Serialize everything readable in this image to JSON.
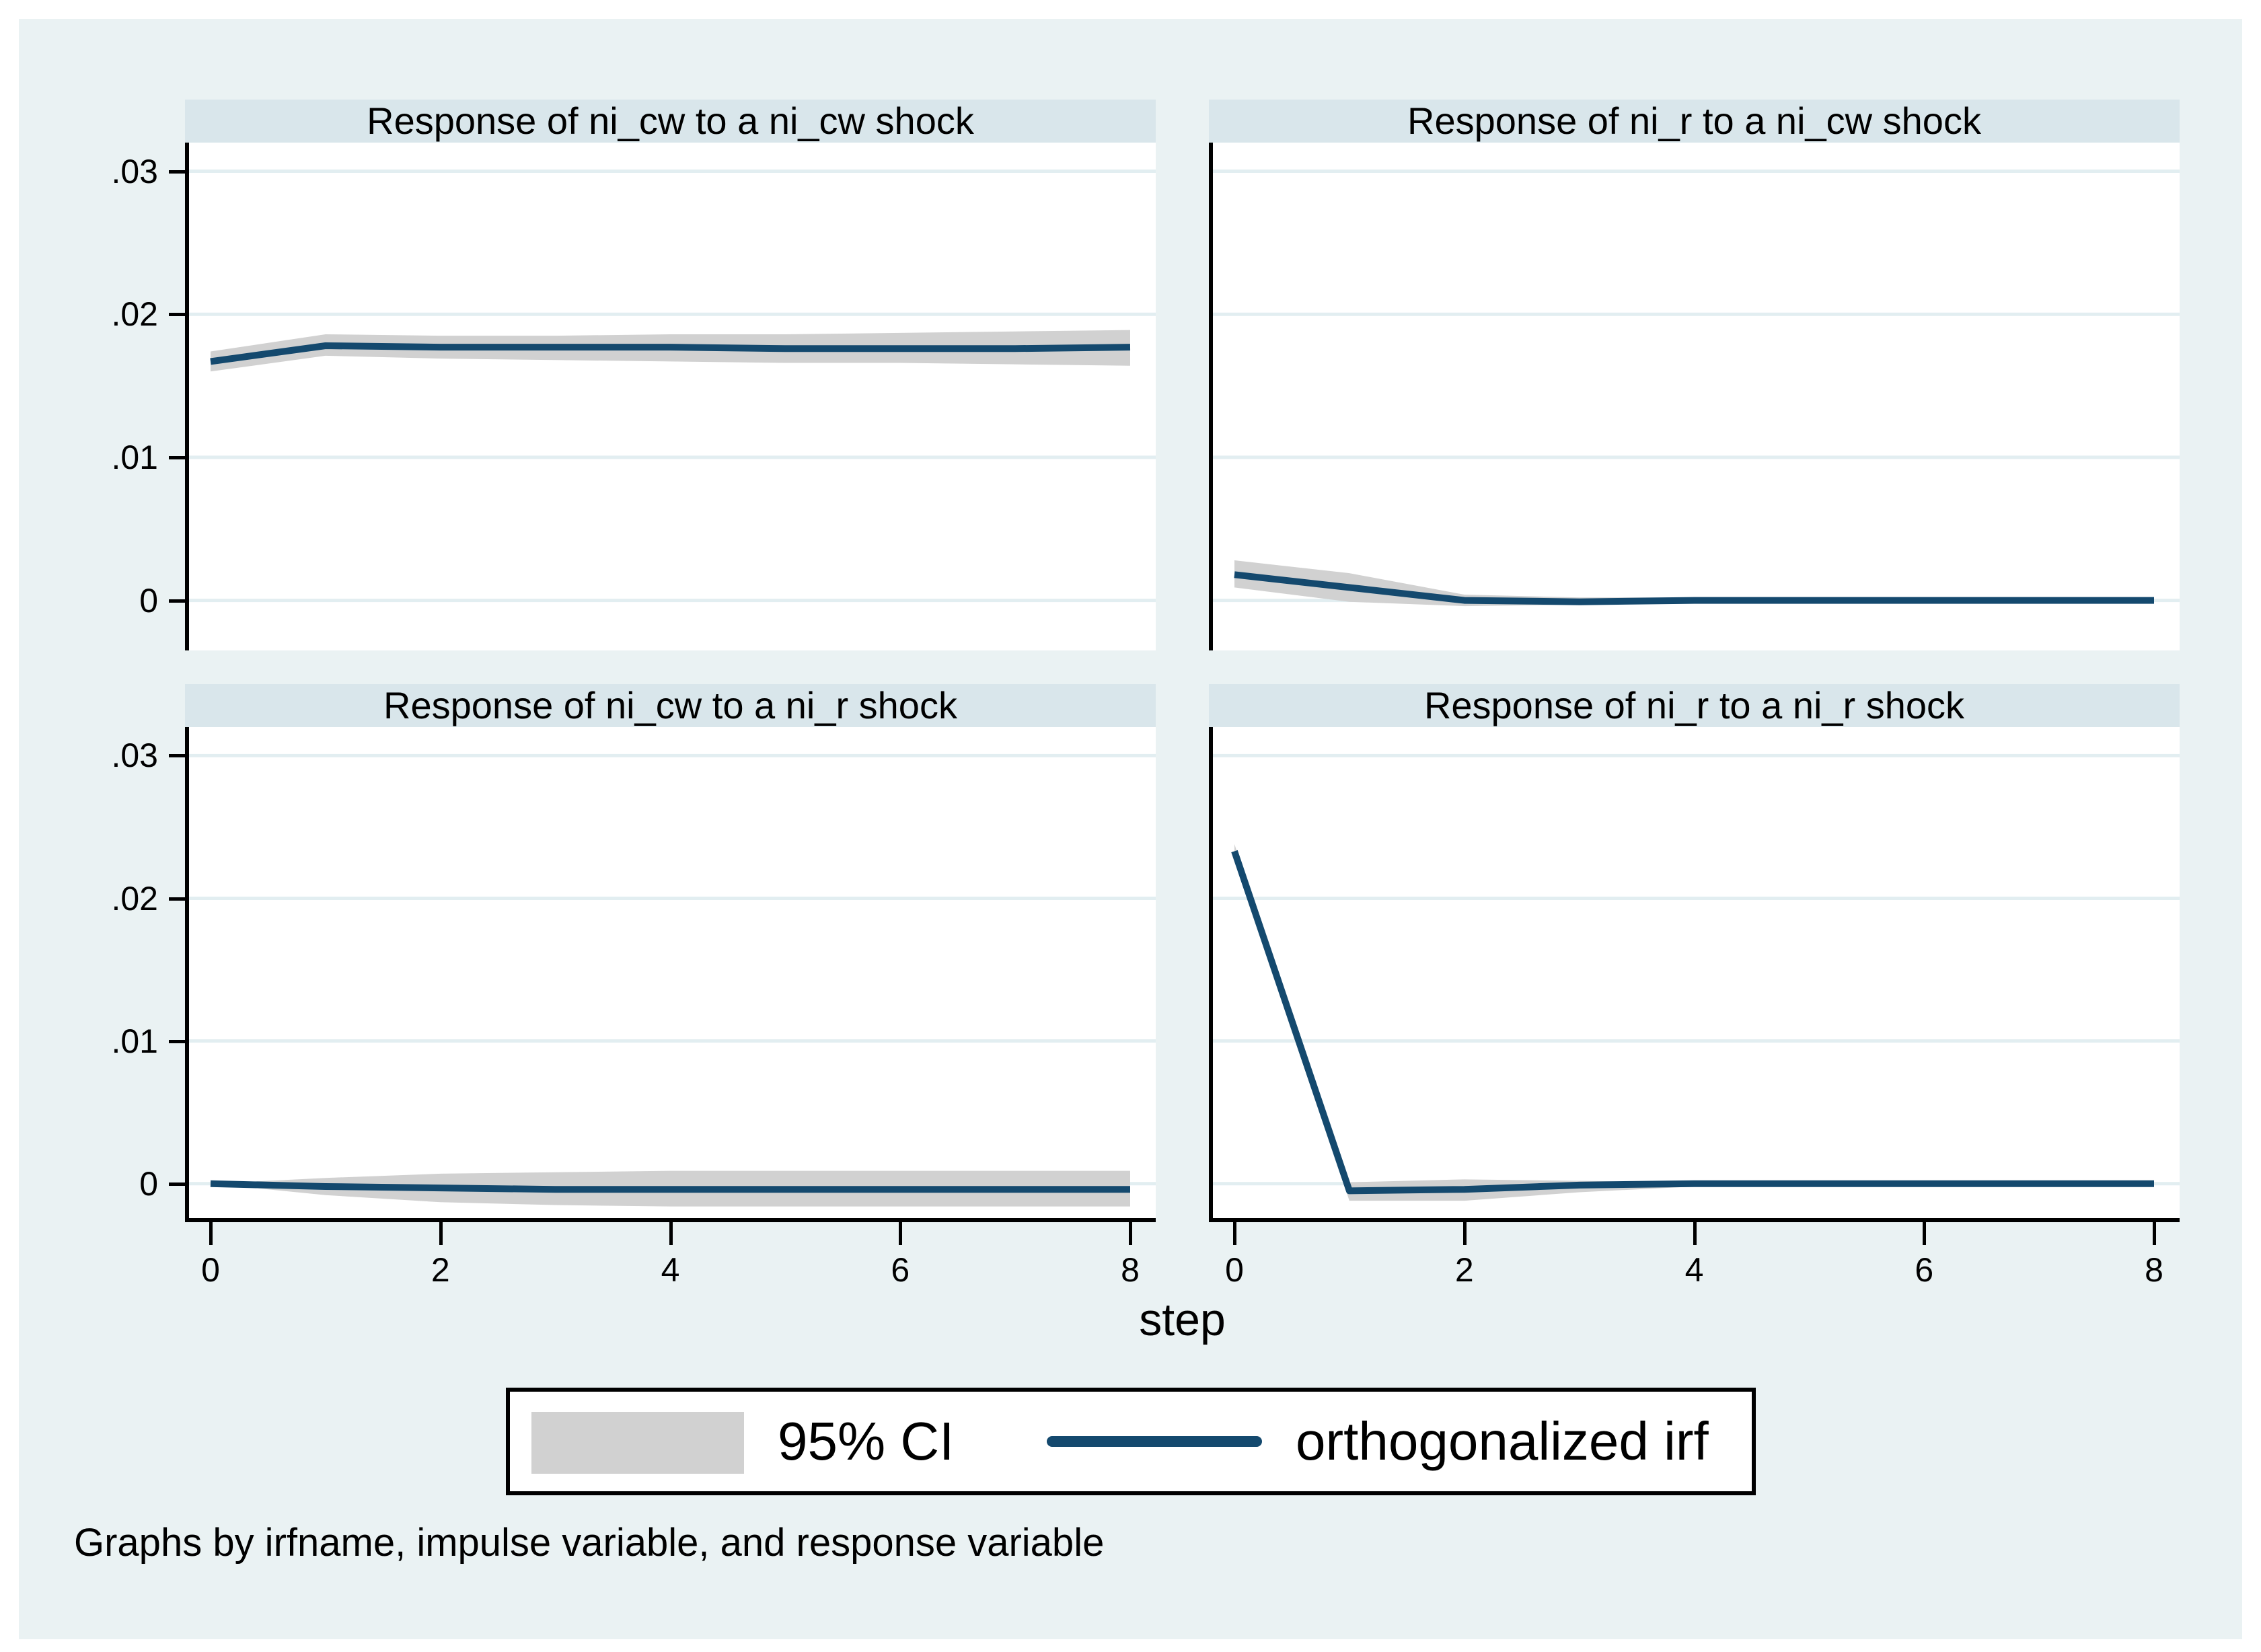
{
  "figure": {
    "caption": "Graphs by irfname, impulse variable, and response variable",
    "background_note": "stata-style impulse-response graph, 2x2 panel grid"
  },
  "legend": {
    "items": [
      {
        "label": "95% CI",
        "swatch": "gray-band"
      },
      {
        "label": "orthogonalized irf",
        "swatch": "navy-line"
      }
    ]
  },
  "colors": {
    "canvas": "#ffffff",
    "graph_background": "#eaf2f3",
    "panel_title_background": "#d9e6eb",
    "plot_background": "#ffffff",
    "gridline": "#e2eef1",
    "axis": "#000000",
    "text": "#000000",
    "ci_band": "#d1d1d1",
    "irf_line": "#14496e"
  },
  "chart_data": {
    "type": "line",
    "xlabel": "step",
    "x_range": [
      0,
      8
    ],
    "y_axis": {
      "ticks": [
        {
          "label": ".03",
          "value": 0.03
        },
        {
          "label": ".02",
          "value": 0.02
        },
        {
          "label": ".01",
          "value": 0.01
        },
        {
          "label": "0",
          "value": 0
        }
      ]
    },
    "x_axis": {
      "ticks": [
        {
          "label": "0",
          "value": 0
        },
        {
          "label": "2",
          "value": 2
        },
        {
          "label": "4",
          "value": 4
        },
        {
          "label": "6",
          "value": 6
        },
        {
          "label": "8",
          "value": 8
        }
      ]
    },
    "grid": true,
    "legend_position": "bottom-center",
    "panels": [
      {
        "title": "Response of ni_cw to a ni_cw shock",
        "x": [
          0,
          1,
          2,
          3,
          4,
          5,
          6,
          7,
          8
        ],
        "irf": [
          0.0167,
          0.0178,
          0.0177,
          0.0177,
          0.0177,
          0.0176,
          0.0176,
          0.0176,
          0.0177
        ],
        "ci_upper": [
          0.0174,
          0.0186,
          0.0185,
          0.0185,
          0.0186,
          0.0186,
          0.0187,
          0.0188,
          0.0189
        ],
        "ci_lower": [
          0.016,
          0.0171,
          0.0169,
          0.0168,
          0.0167,
          0.0166,
          0.0166,
          0.0165,
          0.0164
        ]
      },
      {
        "title": "Response of ni_r to a ni_cw shock",
        "x": [
          0,
          1,
          2,
          3,
          4,
          5,
          6,
          7,
          8
        ],
        "irf": [
          0.0018,
          0.0009,
          0.0,
          -0.0001,
          0.0,
          0.0,
          0.0,
          0.0,
          0.0
        ],
        "ci_upper": [
          0.0028,
          0.0019,
          0.0004,
          0.0002,
          0.0002,
          0.0002,
          0.0002,
          0.0002,
          0.0002
        ],
        "ci_lower": [
          0.0009,
          -0.0001,
          -0.0004,
          -0.0003,
          -0.0002,
          -0.0002,
          -0.0002,
          -0.0002,
          -0.0002
        ]
      },
      {
        "title": "Response of ni_cw to a ni_r shock",
        "x": [
          0,
          1,
          2,
          3,
          4,
          5,
          6,
          7,
          8
        ],
        "irf": [
          0.0,
          -0.0002,
          -0.0003,
          -0.0004,
          -0.0004,
          -0.0004,
          -0.0004,
          -0.0004,
          -0.0004
        ],
        "ci_upper": [
          0.0,
          0.0004,
          0.0007,
          0.0008,
          0.0009,
          0.0009,
          0.0009,
          0.0009,
          0.0009
        ],
        "ci_lower": [
          0.0,
          -0.0008,
          -0.0013,
          -0.0015,
          -0.0016,
          -0.0016,
          -0.0016,
          -0.0016,
          -0.0016
        ]
      },
      {
        "title": "Response of ni_r to a ni_r shock",
        "x": [
          0,
          1,
          2,
          3,
          4,
          5,
          6,
          7,
          8
        ],
        "irf": [
          0.0233,
          -0.0005,
          -0.0004,
          -0.0001,
          0.0,
          0.0,
          0.0,
          0.0,
          0.0
        ],
        "ci_upper": [
          0.0238,
          0.0001,
          0.0003,
          0.0002,
          0.0001,
          0.0001,
          0.0001,
          0.0001,
          0.0001
        ],
        "ci_lower": [
          0.0228,
          -0.0012,
          -0.0012,
          -0.0006,
          -0.0002,
          -0.0001,
          -0.0001,
          -0.0001,
          -0.0001
        ]
      }
    ]
  }
}
